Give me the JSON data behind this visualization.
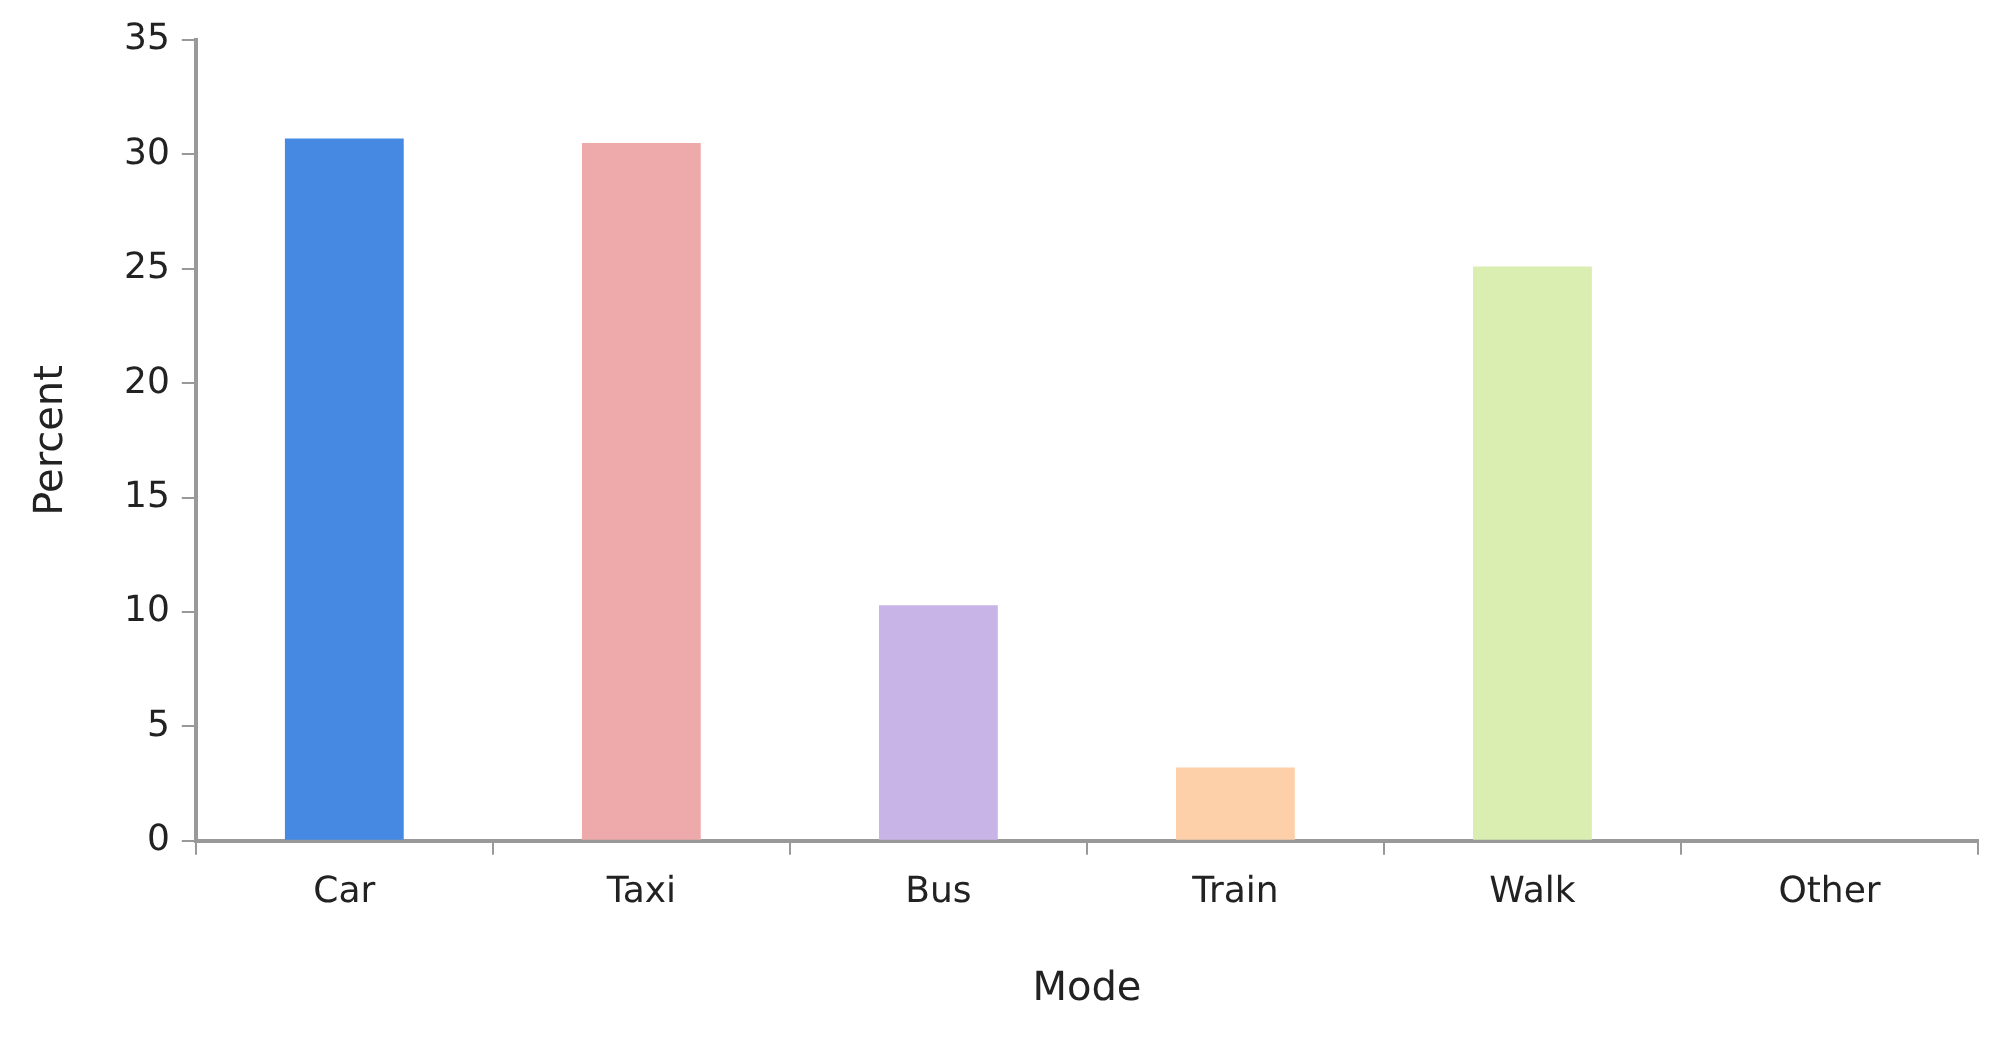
{
  "chart_data": {
    "type": "bar",
    "xlabel": "Mode",
    "ylabel": "Percent",
    "categories": [
      "Car",
      "Taxi",
      "Bus",
      "Train",
      "Walk",
      "Other"
    ],
    "values": [
      30.7,
      30.5,
      10.3,
      3.2,
      25.1,
      0
    ],
    "colors": [
      "#4589e3",
      "#eeaaaa",
      "#c8b4e6",
      "#fdd0aa",
      "#d9eeb0",
      "#cccccc"
    ],
    "ylim": [
      0,
      35
    ],
    "yticks": [
      0,
      5,
      10,
      15,
      20,
      25,
      30,
      35
    ],
    "grid": false,
    "legend": false
  }
}
